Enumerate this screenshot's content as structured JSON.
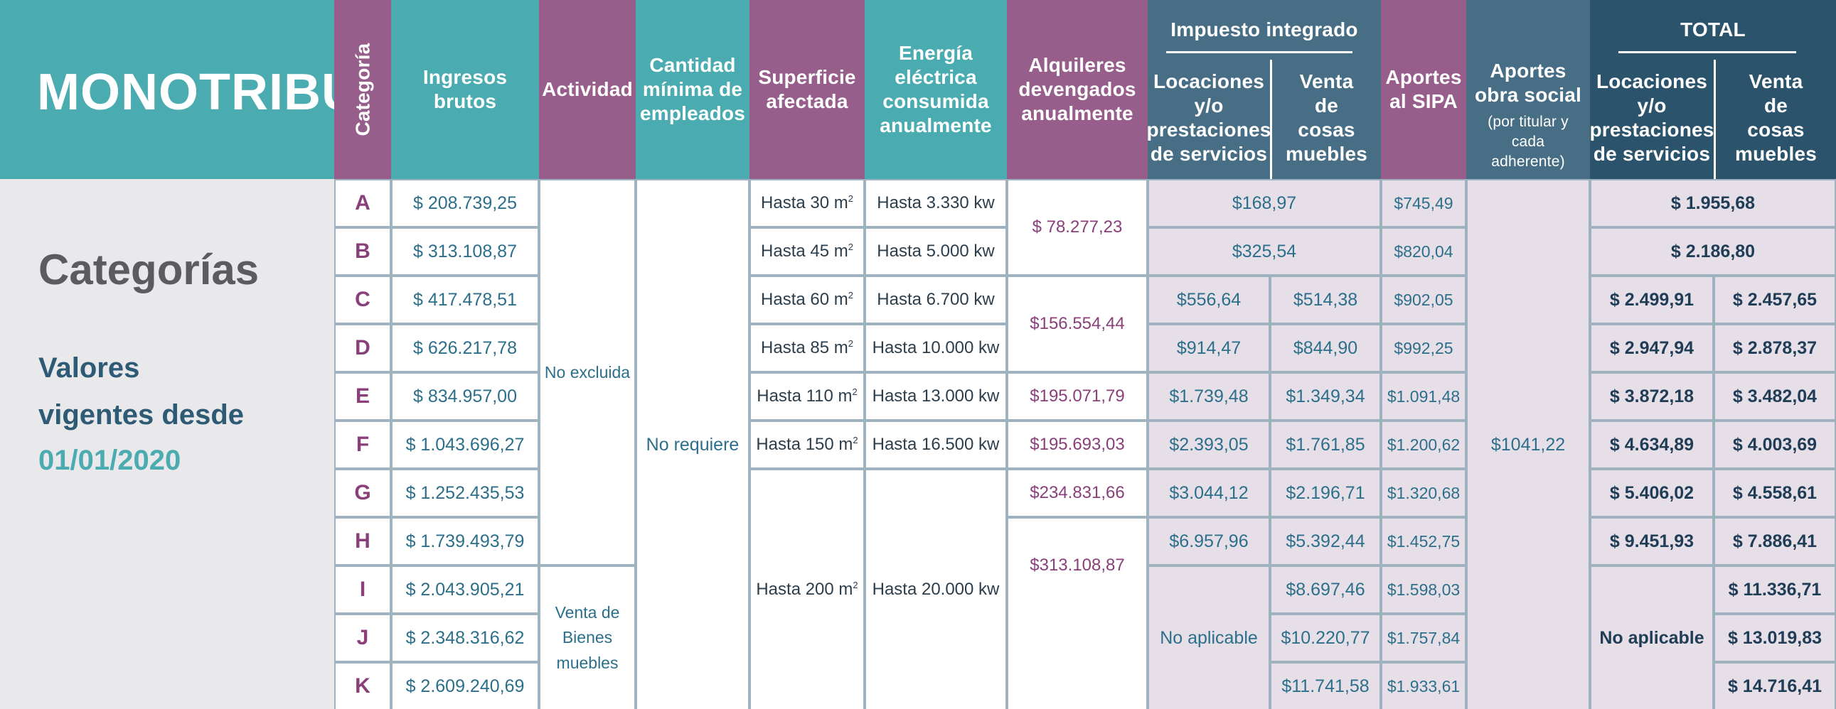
{
  "title": "MONOTRIBUTO",
  "left_panel": {
    "heading": "Categorías",
    "line1": "Valores",
    "line2": "vigentes desde",
    "date": "01/01/2020"
  },
  "headers": {
    "categoria": "Categoría",
    "ingresos": "Ingresos brutos",
    "actividad": "Actividad",
    "empleados": "Cantidad mínima de empleados",
    "superficie": "Superficie afectada",
    "energia": "Energía eléctrica consumida anualmente",
    "alquileres": "Alquileres devengados anualmente",
    "impuesto_group": "Impuesto integrado",
    "impuesto_locaciones": "Locaciones y/o prestaciones de servicios",
    "impuesto_venta": "Venta de cosas muebles",
    "sipa": "Aportes al SIPA",
    "obra_social": "Aportes obra social",
    "obra_social_note": "(por titular y cada adherente)",
    "total_group": "TOTAL",
    "total_locaciones": "Locaciones y/o prestaciones de servicios",
    "total_venta": "Venta de cosas muebles"
  },
  "rows": [
    {
      "cat": "A",
      "ingresos": "$ 208.739,25",
      "sipa": "$745,49"
    },
    {
      "cat": "B",
      "ingresos": "$ 313.108,87",
      "sipa": "$820,04"
    },
    {
      "cat": "C",
      "ingresos": "$ 417.478,51",
      "sipa": "$902,05"
    },
    {
      "cat": "D",
      "ingresos": "$ 626.217,78",
      "sipa": "$992,25"
    },
    {
      "cat": "E",
      "ingresos": "$ 834.957,00",
      "sipa": "$1.091,48"
    },
    {
      "cat": "F",
      "ingresos": "$ 1.043.696,27",
      "sipa": "$1.200,62"
    },
    {
      "cat": "G",
      "ingresos": "$ 1.252.435,53",
      "sipa": "$1.320,68"
    },
    {
      "cat": "H",
      "ingresos": "$ 1.739.493,79",
      "sipa": "$1.452,75"
    },
    {
      "cat": "I",
      "ingresos": "$ 2.043.905,21",
      "sipa": "$1.598,03"
    },
    {
      "cat": "J",
      "ingresos": "$ 2.348.316,62",
      "sipa": "$1.757,84"
    },
    {
      "cat": "K",
      "ingresos": "$ 2.609.240,69",
      "sipa": "$1.933,61"
    }
  ],
  "actividad": {
    "no_excluida": "No excluida",
    "venta_bienes": "Venta de Bienes muebles"
  },
  "empleados_value": "No requiere",
  "superficie": [
    {
      "prefix": "Hasta 30 m",
      "unit": "2"
    },
    {
      "prefix": "Hasta 45 m",
      "unit": "2"
    },
    {
      "prefix": "Hasta 60 m",
      "unit": "2"
    },
    {
      "prefix": "Hasta 85 m",
      "unit": "2"
    },
    {
      "prefix": "Hasta 110 m",
      "unit": "2"
    },
    {
      "prefix": "Hasta 150 m",
      "unit": "2"
    },
    {
      "prefix": "Hasta 200 m",
      "unit": "2"
    }
  ],
  "energia": [
    "Hasta 3.330 kw",
    "Hasta 5.000 kw",
    "Hasta 6.700 kw",
    "Hasta 10.000 kw",
    "Hasta 13.000 kw",
    "Hasta 16.500 kw",
    "Hasta 20.000 kw"
  ],
  "alquileres": [
    "$ 78.277,23",
    "$156.554,44",
    "$195.071,79",
    "$195.693,03",
    "$234.831,66",
    "$313.108,87"
  ],
  "impuesto": {
    "ab": [
      "$168,97",
      "$325,54"
    ],
    "locaciones": [
      "$556,64",
      "$914,47",
      "$1.739,48",
      "$2.393,05",
      "$3.044,12",
      "$6.957,96"
    ],
    "venta": [
      "$514,38",
      "$844,90",
      "$1.349,34",
      "$1.761,85",
      "$2.196,71",
      "$5.392,44",
      "$8.697,46",
      "$10.220,77",
      "$11.741,58"
    ],
    "no_aplicable": "No aplicable"
  },
  "obra_social_value": "$1041,22",
  "total": {
    "ab": [
      "$ 1.955,68",
      "$ 2.186,80"
    ],
    "locaciones": [
      "$ 2.499,91",
      "$ 2.947,94",
      "$ 3.872,18",
      "$ 4.634,89",
      "$ 5.406,02",
      "$ 9.451,93"
    ],
    "venta": [
      "$ 2.457,65",
      "$ 2.878,37",
      "$ 3.482,04",
      "$ 4.003,69",
      "$ 4.558,61",
      "$ 7.886,41",
      "$ 11.336,71",
      "$ 13.019,83",
      "$ 14.716,41"
    ],
    "no_aplicable": "No aplicable"
  },
  "colors": {
    "teal": "#4aacb0",
    "purple": "#975e8b",
    "slate": "#476e85",
    "navy": "#2b546c",
    "lavender": "#e7dfe8"
  }
}
